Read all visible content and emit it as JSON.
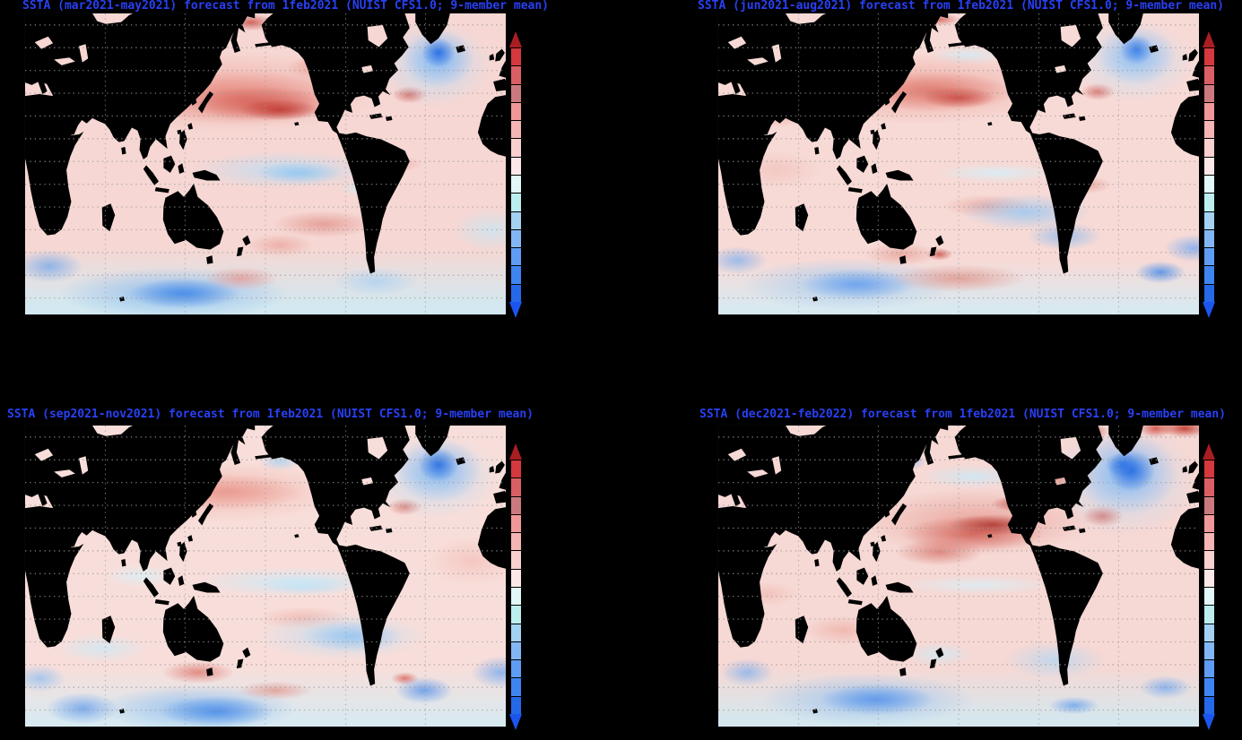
{
  "page": {
    "background": "#000000",
    "title_color": "#2940f5"
  },
  "panels": [
    {
      "position": "top-left",
      "title": "SSTA (mar2021-may2021) forecast from 1feb2021 (NUIST CFS1.0; 9-member mean)",
      "season": "mar2021-may2021",
      "init": "1feb2021",
      "model": "NUIST CFS1.0",
      "ensemble": "9-member mean"
    },
    {
      "position": "top-right",
      "title": "SSTA (jun2021-aug2021) forecast from 1feb2021 (NUIST CFS1.0; 9-member mean)",
      "season": "jun2021-aug2021",
      "init": "1feb2021",
      "model": "NUIST CFS1.0",
      "ensemble": "9-member mean"
    },
    {
      "position": "bottom-left",
      "title": "SSTA (sep2021-nov2021) forecast from 1feb2021 (NUIST CFS1.0; 9-member mean)",
      "season": "sep2021-nov2021",
      "init": "1feb2021",
      "model": "NUIST CFS1.0",
      "ensemble": "9-member mean"
    },
    {
      "position": "bottom-right",
      "title": "SSTA (dec2021-feb2022) forecast from 1feb2021 (NUIST CFS1.0; 9-member mean)",
      "season": "dec2021-feb2022",
      "init": "1feb2021",
      "model": "NUIST CFS1.0",
      "ensemble": "9-member mean"
    }
  ],
  "colorbar": {
    "orientation": "vertical",
    "tick_labels_visible": false,
    "top_arrow_color": "#a81e22",
    "bottom_arrow_color": "#1c55ee",
    "segment_colors": [
      "#d5383e",
      "#d95f65",
      "#ca7a7e",
      "#f09899",
      "#f5b5b5",
      "#f9cfcf",
      "#fce8e8",
      "#e2f7f7",
      "#bceef0",
      "#a3d2f3",
      "#83b7f4",
      "#5f9df4",
      "#3f85f2",
      "#2569e9"
    ]
  },
  "map_style": {
    "land_color": "#000000",
    "grid_color": "#9b9b9b",
    "grid_type": "dotted"
  },
  "chart_data": [
    {
      "type": "heatmap",
      "title": "SSTA (mar2021-may2021) forecast from 1feb2021 (NUIST CFS1.0; 9-member mean)",
      "variable": "sea surface temperature anomaly",
      "projection": "global lat-lon, lon 0-360",
      "legend_position": "right vertical colorbar, unlabeled, red=warm to blue=cold",
      "features": [
        {
          "region": "central North Pacific",
          "anomaly": "strong warm (red) arc"
        },
        {
          "region": "equatorial central Pacific",
          "anomaly": "weak cool (light blue) band"
        },
        {
          "region": "subpolar North Atlantic south of Greenland",
          "anomaly": "strong cool (blue) blob"
        },
        {
          "region": "Southern Ocean south of Indian/Pacific sector",
          "anomaly": "strong cool (blue) band"
        },
        {
          "region": "South Pacific convergence zone",
          "anomaly": "moderate warm (red) diagonal band"
        },
        {
          "region": "most other oceans",
          "anomaly": "weak warm (light pink)"
        }
      ]
    },
    {
      "type": "heatmap",
      "title": "SSTA (jun2021-aug2021) forecast from 1feb2021 (NUIST CFS1.0; 9-member mean)",
      "variable": "sea surface temperature anomaly",
      "projection": "global lat-lon, lon 0-360",
      "legend_position": "right vertical colorbar, unlabeled, red=warm to blue=cold",
      "features": [
        {
          "region": "central North Pacific",
          "anomaly": "strong warm (red) arc"
        },
        {
          "region": "southeast tropical Pacific",
          "anomaly": "moderate cool (blue) wedge toward Chile"
        },
        {
          "region": "subpolar North Atlantic",
          "anomaly": "cool (blue) blob"
        },
        {
          "region": "southwest Pacific / Southern Ocean",
          "anomaly": "cool (blue) blob"
        },
        {
          "region": "Indian Ocean and tropics",
          "anomaly": "weak warm (light pink)"
        }
      ]
    },
    {
      "type": "heatmap",
      "title": "SSTA (sep2021-nov2021) forecast from 1feb2021 (NUIST CFS1.0; 9-member mean)",
      "variable": "sea surface temperature anomaly",
      "projection": "global lat-lon, lon 0-360",
      "legend_position": "right vertical colorbar, unlabeled, red=warm to blue=cold",
      "features": [
        {
          "region": "central North Pacific",
          "anomaly": "moderate warm (pink) arc, weaker than earlier seasons"
        },
        {
          "region": "equatorial central-east Pacific",
          "anomaly": "weak-moderate cool (light blue) band"
        },
        {
          "region": "southeast Pacific",
          "anomaly": "moderate cool (blue) wedge"
        },
        {
          "region": "subpolar North Atlantic",
          "anomaly": "strong cool (blue) blob"
        },
        {
          "region": "Southern Ocean",
          "anomaly": "strong cool (blue) band at bottom"
        },
        {
          "region": "global mean state",
          "anomaly": "pale pink / pale cyan, weak amplitude"
        }
      ]
    },
    {
      "type": "heatmap",
      "title": "SSTA (dec2021-feb2022) forecast from 1feb2021 (NUIST CFS1.0; 9-member mean)",
      "variable": "sea surface temperature anomaly",
      "projection": "global lat-lon, lon 0-360",
      "legend_position": "right vertical colorbar, unlabeled, red=warm to blue=cold",
      "features": [
        {
          "region": "central North Pacific",
          "anomaly": "strong warm (dark red) crescent"
        },
        {
          "region": "northwest Pacific / Sea of Okhotsk",
          "anomaly": "cool (blue) patch"
        },
        {
          "region": "far north Atlantic near Greenland/Iceland (top-right corner)",
          "anomaly": "strong warm (dark red)"
        },
        {
          "region": "subpolar North Atlantic",
          "anomaly": "strong cool (blue) blob"
        },
        {
          "region": "equatorial Pacific",
          "anomaly": "weak cool (pale cyan) band"
        },
        {
          "region": "Southern Ocean",
          "anomaly": "cool (blue) band at bottom"
        }
      ]
    }
  ]
}
